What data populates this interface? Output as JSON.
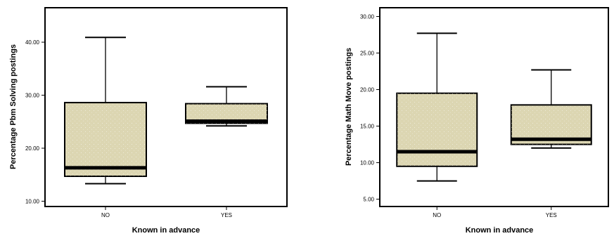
{
  "chart_data": [
    {
      "type": "boxplot",
      "xlabel": "Known in advance",
      "ylabel": "Percentage Pbm Solving postings",
      "categories": [
        "NO",
        "YES"
      ],
      "yticks": [
        "10.00",
        "20.00",
        "30.00",
        "40.00"
      ],
      "ylim": [
        9,
        46.5
      ],
      "boxes": [
        {
          "category": "NO",
          "min": 13.3,
          "q1": 14.7,
          "median": 16.3,
          "q3": 28.6,
          "max": 40.9
        },
        {
          "category": "YES",
          "min": 24.2,
          "q1": 24.7,
          "median": 25.1,
          "q3": 28.4,
          "max": 31.6
        }
      ],
      "box_color": "#dcd6b2"
    },
    {
      "type": "boxplot",
      "xlabel": "Known in advance",
      "ylabel": "Percentage Math Move postings",
      "categories": [
        "NO",
        "YES"
      ],
      "yticks": [
        "5.00",
        "10.00",
        "15.00",
        "20.00",
        "25.00",
        "30.00"
      ],
      "ylim": [
        4,
        31.2
      ],
      "boxes": [
        {
          "category": "NO",
          "min": 7.5,
          "q1": 9.5,
          "median": 11.5,
          "q3": 19.5,
          "max": 27.7
        },
        {
          "category": "YES",
          "min": 12.0,
          "q1": 12.5,
          "median": 13.2,
          "q3": 17.9,
          "max": 22.7
        }
      ],
      "box_color": "#dcd6b2"
    }
  ]
}
